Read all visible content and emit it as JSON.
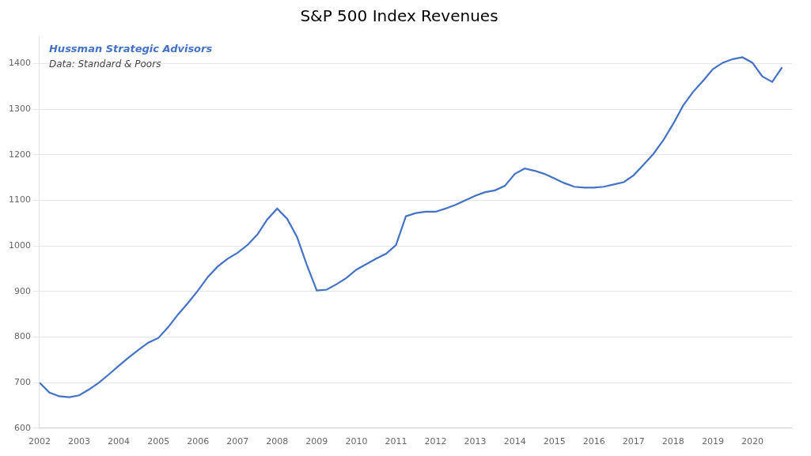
{
  "chart_data": {
    "type": "line",
    "title": "S&P 500 Index Revenues",
    "annotations": [
      "Hussman Strategic Advisors",
      "Data: Standard & Poors"
    ],
    "x": [
      2002.0,
      2002.25,
      2002.5,
      2002.75,
      2003.0,
      2003.25,
      2003.5,
      2003.75,
      2004.0,
      2004.25,
      2004.5,
      2004.75,
      2005.0,
      2005.25,
      2005.5,
      2005.75,
      2006.0,
      2006.25,
      2006.5,
      2006.75,
      2007.0,
      2007.25,
      2007.5,
      2007.75,
      2008.0,
      2008.25,
      2008.5,
      2008.75,
      2009.0,
      2009.25,
      2009.5,
      2009.75,
      2010.0,
      2010.25,
      2010.5,
      2010.75,
      2011.0,
      2011.25,
      2011.5,
      2011.75,
      2012.0,
      2012.25,
      2012.5,
      2012.75,
      2013.0,
      2013.25,
      2013.5,
      2013.75,
      2014.0,
      2014.25,
      2014.5,
      2014.75,
      2015.0,
      2015.25,
      2015.5,
      2015.75,
      2016.0,
      2016.25,
      2016.5,
      2016.75,
      2017.0,
      2017.25,
      2017.5,
      2017.75,
      2018.0,
      2018.25,
      2018.5,
      2018.75,
      2019.0,
      2019.25,
      2019.5,
      2019.75,
      2020.0,
      2020.25,
      2020.5,
      2020.75
    ],
    "values": [
      700,
      678,
      670,
      668,
      672,
      685,
      700,
      718,
      737,
      755,
      772,
      788,
      798,
      822,
      850,
      875,
      902,
      932,
      955,
      972,
      985,
      1002,
      1025,
      1058,
      1082,
      1060,
      1020,
      958,
      902,
      904,
      916,
      930,
      948,
      960,
      972,
      983,
      1002,
      1065,
      1072,
      1075,
      1075,
      1082,
      1090,
      1100,
      1110,
      1118,
      1122,
      1132,
      1158,
      1170,
      1165,
      1158,
      1148,
      1138,
      1130,
      1128,
      1128,
      1130,
      1135,
      1140,
      1155,
      1178,
      1202,
      1232,
      1268,
      1308,
      1338,
      1362,
      1388,
      1402,
      1410,
      1414,
      1402,
      1372,
      1360,
      1392
    ],
    "color": "#4472C4",
    "xlim": [
      2002,
      2021
    ],
    "xticks": [
      2002,
      2003,
      2004,
      2005,
      2006,
      2007,
      2008,
      2009,
      2010,
      2011,
      2012,
      2013,
      2014,
      2015,
      2016,
      2017,
      2018,
      2019,
      2020
    ],
    "ylim": [
      600,
      1460
    ],
    "yticks": [
      600,
      700,
      800,
      900,
      1000,
      1100,
      1200,
      1300,
      1400
    ],
    "grid": "y"
  }
}
